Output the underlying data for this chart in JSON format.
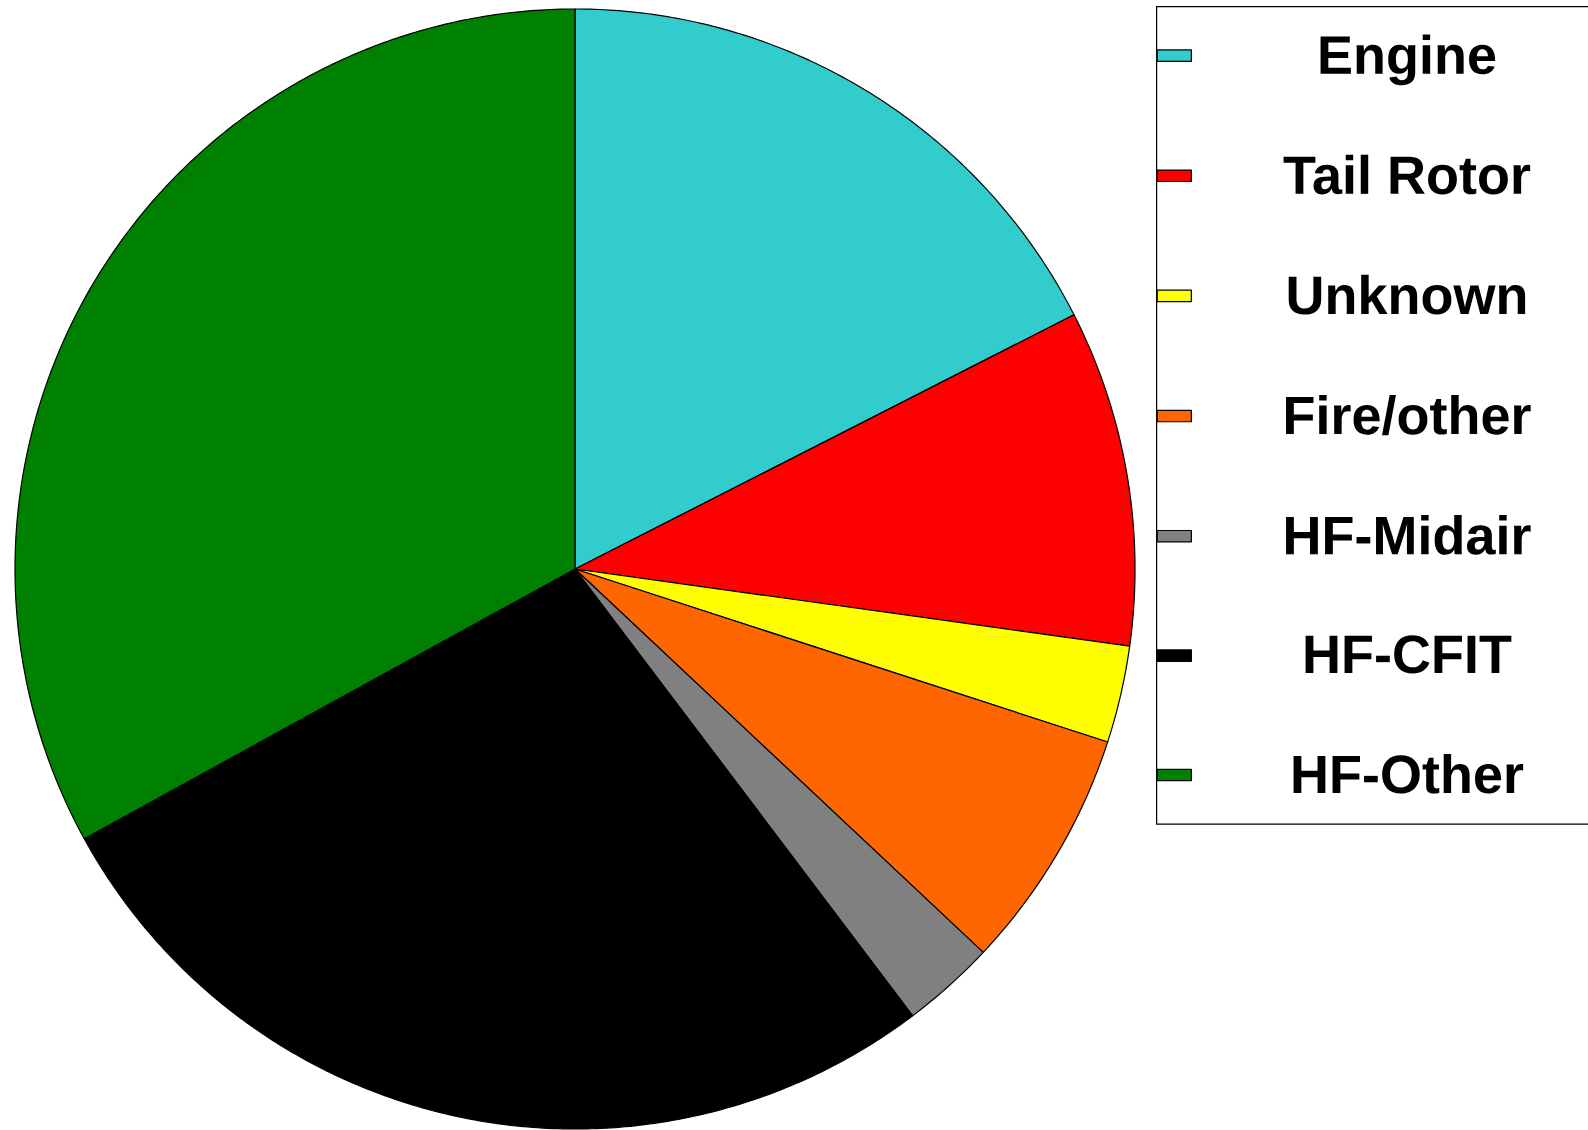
{
  "chart_data": {
    "type": "pie",
    "categories": [
      "Engine",
      "Tail Rotor",
      "Unknown",
      "Fire/other",
      "HF-Midair",
      "HF-CFIT",
      "HF-Other"
    ],
    "values": [
      17.5,
      9.7,
      2.8,
      7.0,
      2.7,
      27.3,
      33.0
    ],
    "colors": [
      "#33cccc",
      "#ff0000",
      "#ffff00",
      "#ff6600",
      "#808080",
      "#000000",
      "#008000"
    ],
    "legend": "right"
  }
}
